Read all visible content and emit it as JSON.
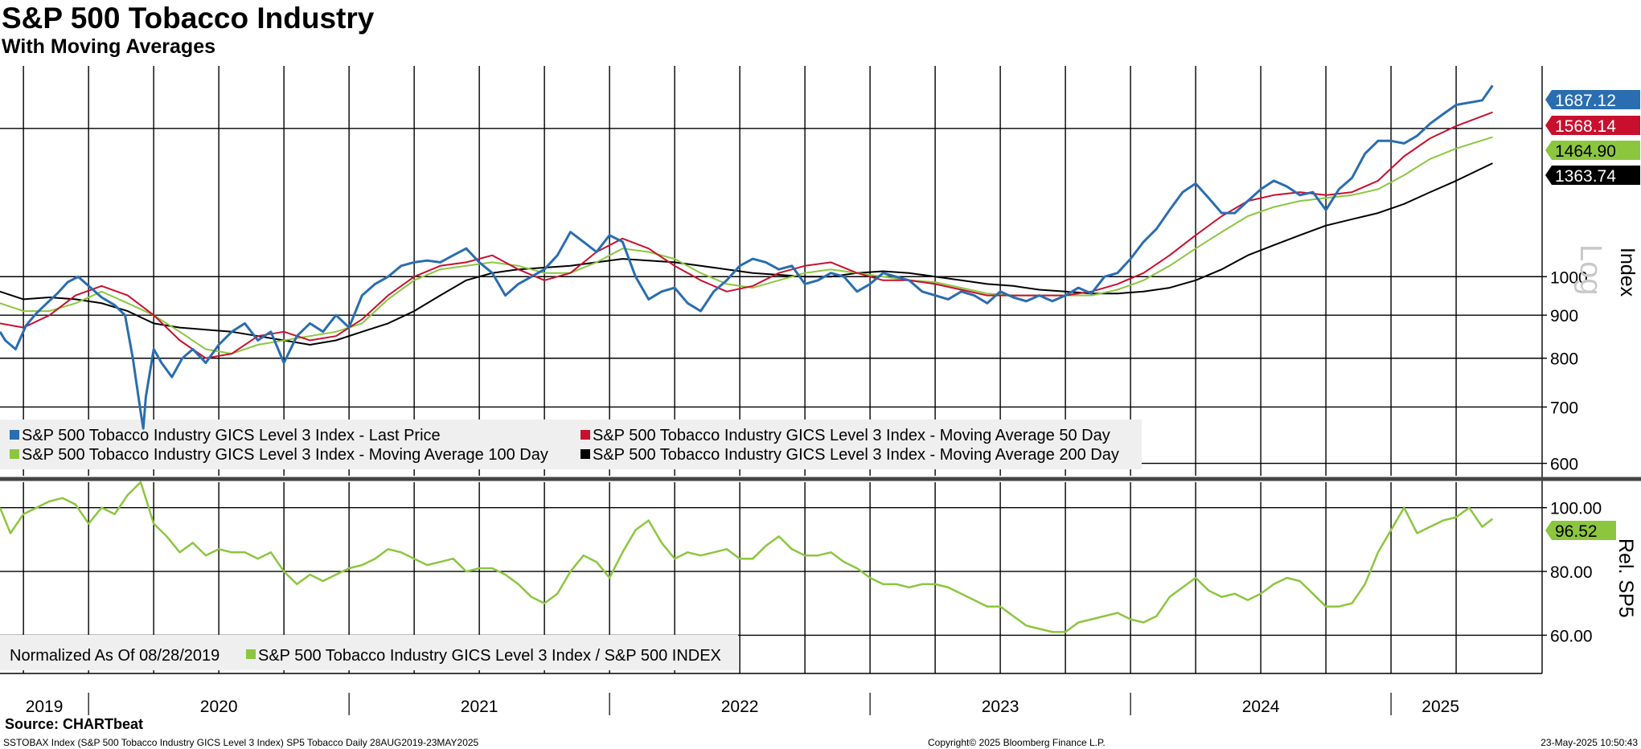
{
  "chart_data": {
    "title": "S&P 500 Tobacco Industry",
    "subtitle": "With Moving Averages",
    "top_panel": {
      "type": "line",
      "scale": "log",
      "ylim": [
        580,
        1780
      ],
      "y_ticks": [
        600,
        700,
        800,
        900,
        1000
      ],
      "y_tick_labels": [
        "600",
        "700",
        "800",
        "900",
        "1000"
      ],
      "ylabel": "Index",
      "scale_label": "Log",
      "series": [
        {
          "name": "S&P 500 Tobacco Industry GICS Level 3 Index - Last Price",
          "color": "#2a6db0",
          "last_value": "1687.12",
          "x": [
            2019.66,
            2019.68,
            2019.72,
            2019.76,
            2019.8,
            2019.84,
            2019.88,
            2019.92,
            2019.96,
            2020.0,
            2020.05,
            2020.1,
            2020.14,
            2020.17,
            2020.2,
            2020.21,
            2020.22,
            2020.25,
            2020.28,
            2020.32,
            2020.36,
            2020.4,
            2020.45,
            2020.5,
            2020.55,
            2020.6,
            2020.65,
            2020.7,
            2020.75,
            2020.8,
            2020.85,
            2020.9,
            2020.95,
            2021.0,
            2021.05,
            2021.1,
            2021.15,
            2021.2,
            2021.25,
            2021.3,
            2021.35,
            2021.4,
            2021.45,
            2021.5,
            2021.55,
            2021.6,
            2021.65,
            2021.7,
            2021.75,
            2021.8,
            2021.85,
            2021.9,
            2021.95,
            2022.0,
            2022.05,
            2022.1,
            2022.15,
            2022.2,
            2022.25,
            2022.3,
            2022.35,
            2022.4,
            2022.45,
            2022.5,
            2022.55,
            2022.6,
            2022.65,
            2022.7,
            2022.75,
            2022.8,
            2022.85,
            2022.9,
            2022.95,
            2023.0,
            2023.05,
            2023.1,
            2023.15,
            2023.2,
            2023.25,
            2023.3,
            2023.35,
            2023.4,
            2023.45,
            2023.5,
            2023.55,
            2023.6,
            2023.65,
            2023.7,
            2023.75,
            2023.8,
            2023.85,
            2023.9,
            2023.95,
            2024.0,
            2024.05,
            2024.1,
            2024.15,
            2024.2,
            2024.25,
            2024.3,
            2024.35,
            2024.4,
            2024.45,
            2024.5,
            2024.55,
            2024.6,
            2024.65,
            2024.7,
            2024.75,
            2024.8,
            2024.85,
            2024.9,
            2024.95,
            2025.0,
            2025.05,
            2025.1,
            2025.15,
            2025.2,
            2025.25,
            2025.3,
            2025.35,
            2025.39
          ],
          "values": [
            860,
            840,
            820,
            875,
            905,
            930,
            955,
            985,
            1000,
            975,
            945,
            925,
            900,
            800,
            690,
            660,
            720,
            820,
            790,
            760,
            800,
            820,
            790,
            830,
            860,
            880,
            840,
            860,
            790,
            850,
            880,
            860,
            900,
            870,
            950,
            980,
            1000,
            1030,
            1040,
            1045,
            1040,
            1060,
            1080,
            1040,
            1010,
            950,
            980,
            1000,
            1020,
            1060,
            1130,
            1100,
            1070,
            1120,
            1100,
            1000,
            940,
            960,
            970,
            930,
            910,
            960,
            990,
            1030,
            1050,
            1040,
            1020,
            1030,
            980,
            990,
            1010,
            1000,
            960,
            980,
            1010,
            1000,
            990,
            960,
            950,
            940,
            960,
            950,
            930,
            960,
            945,
            935,
            950,
            935,
            950,
            970,
            955,
            1000,
            1010,
            1050,
            1100,
            1140,
            1200,
            1260,
            1290,
            1240,
            1190,
            1190,
            1230,
            1270,
            1300,
            1280,
            1250,
            1260,
            1200,
            1270,
            1310,
            1400,
            1450,
            1450,
            1440,
            1470,
            1520,
            1560,
            1600,
            1610,
            1620,
            1687
          ]
        },
        {
          "name": "S&P 500 Tobacco Industry GICS Level 3 Index - Moving Average 50 Day",
          "color": "#c8102e",
          "last_value": "1568.14",
          "x": [
            2019.66,
            2019.75,
            2019.85,
            2019.95,
            2020.05,
            2020.15,
            2020.25,
            2020.35,
            2020.45,
            2020.55,
            2020.65,
            2020.75,
            2020.85,
            2020.95,
            2021.05,
            2021.15,
            2021.25,
            2021.35,
            2021.45,
            2021.55,
            2021.65,
            2021.75,
            2021.85,
            2021.95,
            2022.05,
            2022.15,
            2022.25,
            2022.35,
            2022.45,
            2022.55,
            2022.65,
            2022.75,
            2022.85,
            2022.95,
            2023.05,
            2023.15,
            2023.25,
            2023.35,
            2023.45,
            2023.55,
            2023.65,
            2023.75,
            2023.85,
            2023.95,
            2024.05,
            2024.15,
            2024.25,
            2024.35,
            2024.45,
            2024.55,
            2024.65,
            2024.75,
            2024.85,
            2024.95,
            2025.05,
            2025.15,
            2025.25,
            2025.39
          ],
          "values": [
            880,
            870,
            900,
            950,
            975,
            950,
            900,
            840,
            800,
            810,
            850,
            860,
            840,
            850,
            890,
            950,
            1000,
            1030,
            1040,
            1060,
            1020,
            990,
            1010,
            1070,
            1110,
            1080,
            1030,
            990,
            960,
            975,
            1010,
            1030,
            1040,
            1010,
            990,
            990,
            980,
            965,
            950,
            950,
            950,
            950,
            960,
            980,
            1010,
            1060,
            1120,
            1180,
            1230,
            1250,
            1260,
            1250,
            1260,
            1300,
            1390,
            1460,
            1510,
            1568
          ]
        },
        {
          "name": "S&P 500 Tobacco Industry GICS Level 3 Index - Moving Average 100 Day",
          "color": "#8cc63f",
          "last_value": "1464.90",
          "x": [
            2019.66,
            2019.75,
            2019.85,
            2019.95,
            2020.05,
            2020.15,
            2020.25,
            2020.35,
            2020.45,
            2020.55,
            2020.65,
            2020.75,
            2020.85,
            2020.95,
            2021.05,
            2021.15,
            2021.25,
            2021.35,
            2021.45,
            2021.55,
            2021.65,
            2021.75,
            2021.85,
            2021.95,
            2022.05,
            2022.15,
            2022.25,
            2022.35,
            2022.45,
            2022.55,
            2022.65,
            2022.75,
            2022.85,
            2022.95,
            2023.05,
            2023.15,
            2023.25,
            2023.35,
            2023.45,
            2023.55,
            2023.65,
            2023.75,
            2023.85,
            2023.95,
            2024.05,
            2024.15,
            2024.25,
            2024.35,
            2024.45,
            2024.55,
            2024.65,
            2024.75,
            2024.85,
            2024.95,
            2025.05,
            2025.15,
            2025.25,
            2025.39
          ],
          "values": [
            930,
            910,
            910,
            930,
            960,
            930,
            900,
            860,
            820,
            810,
            830,
            840,
            850,
            860,
            880,
            940,
            990,
            1020,
            1030,
            1040,
            1030,
            1010,
            1010,
            1040,
            1080,
            1070,
            1050,
            1010,
            980,
            970,
            990,
            1010,
            1020,
            1010,
            1000,
            990,
            985,
            970,
            955,
            950,
            950,
            950,
            950,
            965,
            990,
            1030,
            1080,
            1130,
            1180,
            1210,
            1230,
            1240,
            1250,
            1270,
            1320,
            1380,
            1420,
            1465
          ]
        },
        {
          "name": "S&P 500 Tobacco Industry GICS Level 3 Index - Moving Average 200 Day",
          "color": "#000000",
          "last_value": "1363.74",
          "x": [
            2019.66,
            2019.75,
            2019.85,
            2019.95,
            2020.05,
            2020.15,
            2020.25,
            2020.35,
            2020.45,
            2020.55,
            2020.65,
            2020.75,
            2020.85,
            2020.95,
            2021.05,
            2021.15,
            2021.25,
            2021.35,
            2021.45,
            2021.55,
            2021.65,
            2021.75,
            2021.85,
            2021.95,
            2022.05,
            2022.15,
            2022.25,
            2022.35,
            2022.45,
            2022.55,
            2022.65,
            2022.75,
            2022.85,
            2022.95,
            2023.05,
            2023.15,
            2023.25,
            2023.35,
            2023.45,
            2023.55,
            2023.65,
            2023.75,
            2023.85,
            2023.95,
            2024.05,
            2024.15,
            2024.25,
            2024.35,
            2024.45,
            2024.55,
            2024.65,
            2024.75,
            2024.85,
            2024.95,
            2025.05,
            2025.15,
            2025.25,
            2025.39
          ],
          "values": [
            960,
            940,
            945,
            940,
            930,
            910,
            880,
            870,
            865,
            860,
            850,
            840,
            830,
            840,
            860,
            880,
            910,
            950,
            990,
            1010,
            1020,
            1025,
            1030,
            1040,
            1050,
            1045,
            1040,
            1030,
            1020,
            1010,
            1005,
            1000,
            1000,
            1010,
            1015,
            1010,
            1000,
            990,
            980,
            975,
            965,
            960,
            955,
            955,
            960,
            970,
            990,
            1020,
            1060,
            1090,
            1120,
            1150,
            1170,
            1190,
            1220,
            1260,
            1300,
            1364
          ]
        }
      ]
    },
    "bottom_panel": {
      "type": "line",
      "scale": "linear",
      "ylim": [
        48,
        108
      ],
      "y_ticks": [
        60,
        80,
        100
      ],
      "y_tick_labels": [
        "60.00",
        "80.00",
        "100.00"
      ],
      "ylabel": "Rel. SP5",
      "series": [
        {
          "name": "S&P 500 Tobacco Industry GICS Level 3 Index / S&P 500 INDEX",
          "color": "#8cc63f",
          "last_value": "96.52",
          "x": [
            2019.66,
            2019.7,
            2019.75,
            2019.8,
            2019.85,
            2019.9,
            2019.95,
            2020.0,
            2020.05,
            2020.1,
            2020.15,
            2020.2,
            2020.25,
            2020.3,
            2020.35,
            2020.4,
            2020.45,
            2020.5,
            2020.55,
            2020.6,
            2020.65,
            2020.7,
            2020.75,
            2020.8,
            2020.85,
            2020.9,
            2020.95,
            2021.0,
            2021.05,
            2021.1,
            2021.15,
            2021.2,
            2021.25,
            2021.3,
            2021.35,
            2021.4,
            2021.45,
            2021.5,
            2021.55,
            2021.6,
            2021.65,
            2021.7,
            2021.75,
            2021.8,
            2021.85,
            2021.9,
            2021.95,
            2022.0,
            2022.05,
            2022.1,
            2022.15,
            2022.2,
            2022.25,
            2022.3,
            2022.35,
            2022.4,
            2022.45,
            2022.5,
            2022.55,
            2022.6,
            2022.65,
            2022.7,
            2022.75,
            2022.8,
            2022.85,
            2022.9,
            2022.95,
            2023.0,
            2023.05,
            2023.1,
            2023.15,
            2023.2,
            2023.25,
            2023.3,
            2023.35,
            2023.4,
            2023.45,
            2023.5,
            2023.55,
            2023.6,
            2023.65,
            2023.7,
            2023.75,
            2023.8,
            2023.85,
            2023.9,
            2023.95,
            2024.0,
            2024.05,
            2024.1,
            2024.15,
            2024.2,
            2024.25,
            2024.3,
            2024.35,
            2024.4,
            2024.45,
            2024.5,
            2024.55,
            2024.6,
            2024.65,
            2024.7,
            2024.75,
            2024.8,
            2024.85,
            2024.9,
            2024.95,
            2025.0,
            2025.05,
            2025.1,
            2025.15,
            2025.2,
            2025.25,
            2025.3,
            2025.35,
            2025.39
          ],
          "values": [
            100,
            92,
            98,
            100,
            102,
            103,
            101,
            95,
            100,
            98,
            104,
            108,
            95,
            91,
            86,
            89,
            85,
            87,
            86,
            86,
            84,
            86,
            80,
            76,
            79,
            77,
            79,
            81,
            82,
            84,
            87,
            86,
            84,
            82,
            83,
            84,
            80,
            81,
            81,
            79,
            76,
            72,
            70,
            73,
            80,
            85,
            83,
            78,
            86,
            93,
            96,
            89,
            84,
            86,
            85,
            86,
            87,
            84,
            84,
            88,
            91,
            87,
            85,
            85,
            86,
            83,
            81,
            78,
            76,
            76,
            75,
            76,
            76,
            75,
            73,
            71,
            69,
            69,
            66,
            63,
            62,
            61,
            61,
            64,
            65,
            66,
            67,
            65,
            64,
            66,
            72,
            75,
            78,
            74,
            72,
            73,
            71,
            73,
            76,
            78,
            77,
            73,
            69,
            69,
            70,
            76,
            86,
            93,
            100,
            92,
            94,
            96,
            97,
            100,
            94,
            96.5
          ]
        }
      ]
    },
    "x_axis": {
      "range": [
        2019.66,
        2025.58
      ],
      "year_labels": [
        {
          "x": 2019.83,
          "label": "2019"
        },
        {
          "x": 2020.5,
          "label": "2020"
        },
        {
          "x": 2021.5,
          "label": "2021"
        },
        {
          "x": 2022.5,
          "label": "2022"
        },
        {
          "x": 2023.5,
          "label": "2023"
        },
        {
          "x": 2024.5,
          "label": "2024"
        },
        {
          "x": 2025.19,
          "label": "2025"
        }
      ],
      "year_boundaries": [
        2020,
        2021,
        2022,
        2023,
        2024,
        2025
      ],
      "quarter_gridlines": [
        2019.75,
        2020.0,
        2020.25,
        2020.5,
        2020.75,
        2021.0,
        2021.25,
        2021.5,
        2021.75,
        2022.0,
        2022.25,
        2022.5,
        2022.75,
        2023.0,
        2023.25,
        2023.5,
        2023.75,
        2024.0,
        2024.25,
        2024.5,
        2024.75,
        2025.0,
        2025.25
      ]
    },
    "top_legend": [
      "S&P 500 Tobacco Industry GICS Level 3 Index - Last Price",
      "S&P 500 Tobacco Industry GICS Level 3 Index - Moving Average 50 Day",
      "S&P 500 Tobacco Industry GICS Level 3 Index - Moving Average 100 Day",
      "S&P 500 Tobacco Industry GICS Level 3 Index - Moving Average 200 Day"
    ],
    "bottom_legend": {
      "note": "Normalized As Of 08/28/2019",
      "entry": "S&P 500 Tobacco Industry GICS Level 3 Index / S&P 500 INDEX"
    }
  },
  "footer": {
    "source": "Source: CHARTbeat",
    "left": "SSTOBAX Index (S&P 500 Tobacco Industry GICS Level 3 Index) SP5 Tobacco  Daily 28AUG2019-23MAY2025",
    "center": "Copyright© 2025 Bloomberg Finance L.P.",
    "right": "23-May-2025 10:50:43"
  }
}
